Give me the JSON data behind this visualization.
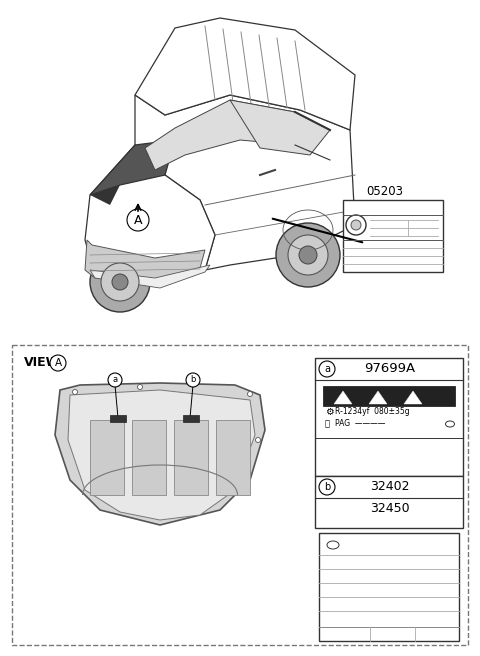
{
  "bg_color": "#ffffff",
  "part_number_top": "05203",
  "part_number_a": "97699A",
  "part_numbers_b": [
    "32402",
    "32450"
  ],
  "view_label": "VIEW",
  "circle_A_label": "A",
  "ref_a_label": "a",
  "ref_b_label": "b",
  "refrigerant_line1": "R-1234yf  080±35g",
  "refrigerant_line2": "PAG",
  "font_color": "#000000",
  "gray_light": "#d8d8d8",
  "gray_mid": "#aaaaaa",
  "gray_dark": "#555555",
  "dashed_color": "#777777",
  "panel_ec": "#333333"
}
